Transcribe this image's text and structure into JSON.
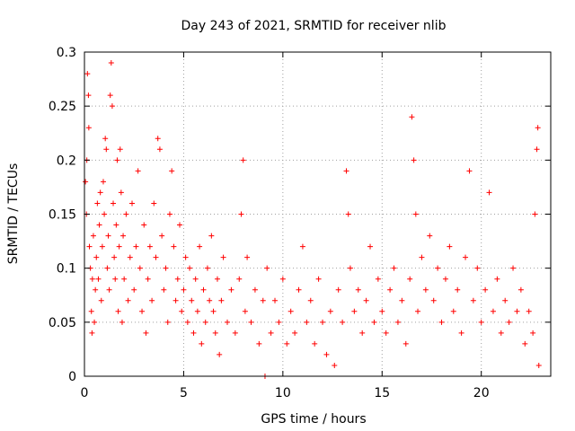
{
  "chart_data": {
    "type": "scatter",
    "title": "Day 243 of 2021, SRMTID for receiver nlib",
    "xlabel": "GPS time / hours",
    "ylabel": "SRMTID / TECUs",
    "xlim": [
      0,
      23.5
    ],
    "ylim": [
      0,
      0.3
    ],
    "x_ticks": [
      0,
      5,
      10,
      15,
      20
    ],
    "x_tick_labels": [
      "0",
      "5",
      "10",
      "15",
      "20"
    ],
    "y_ticks": [
      0,
      0.05,
      0.1,
      0.15,
      0.2,
      0.25,
      0.3
    ],
    "y_tick_labels": [
      "0",
      "0.05",
      "0.1",
      "0.15",
      "0.2",
      "0.25",
      "0.3"
    ],
    "grid": true,
    "marker": "plus",
    "color": "#ff0000",
    "series": [
      {
        "points": [
          [
            0.05,
            0.18
          ],
          [
            0.1,
            0.15
          ],
          [
            0.12,
            0.2
          ],
          [
            0.15,
            0.28
          ],
          [
            0.2,
            0.26
          ],
          [
            0.22,
            0.23
          ],
          [
            0.25,
            0.12
          ],
          [
            0.3,
            0.1
          ],
          [
            0.35,
            0.06
          ],
          [
            0.38,
            0.04
          ],
          [
            0.4,
            0.09
          ],
          [
            0.45,
            0.13
          ],
          [
            0.5,
            0.05
          ],
          [
            0.55,
            0.08
          ],
          [
            0.6,
            0.11
          ],
          [
            0.65,
            0.16
          ],
          [
            0.7,
            0.09
          ],
          [
            0.75,
            0.14
          ],
          [
            0.8,
            0.17
          ],
          [
            0.85,
            0.07
          ],
          [
            0.9,
            0.12
          ],
          [
            0.95,
            0.18
          ],
          [
            1.0,
            0.15
          ],
          [
            1.05,
            0.22
          ],
          [
            1.1,
            0.21
          ],
          [
            1.15,
            0.1
          ],
          [
            1.2,
            0.13
          ],
          [
            1.25,
            0.08
          ],
          [
            1.3,
            0.26
          ],
          [
            1.35,
            0.29
          ],
          [
            1.4,
            0.25
          ],
          [
            1.45,
            0.16
          ],
          [
            1.5,
            0.11
          ],
          [
            1.55,
            0.09
          ],
          [
            1.6,
            0.14
          ],
          [
            1.65,
            0.2
          ],
          [
            1.7,
            0.06
          ],
          [
            1.75,
            0.12
          ],
          [
            1.8,
            0.21
          ],
          [
            1.85,
            0.17
          ],
          [
            1.9,
            0.05
          ],
          [
            1.95,
            0.13
          ],
          [
            2.0,
            0.09
          ],
          [
            2.1,
            0.15
          ],
          [
            2.2,
            0.07
          ],
          [
            2.3,
            0.11
          ],
          [
            2.4,
            0.16
          ],
          [
            2.5,
            0.08
          ],
          [
            2.6,
            0.12
          ],
          [
            2.7,
            0.19
          ],
          [
            2.8,
            0.1
          ],
          [
            2.9,
            0.06
          ],
          [
            3.0,
            0.14
          ],
          [
            3.1,
            0.04
          ],
          [
            3.2,
            0.09
          ],
          [
            3.3,
            0.12
          ],
          [
            3.4,
            0.07
          ],
          [
            3.5,
            0.16
          ],
          [
            3.6,
            0.11
          ],
          [
            3.7,
            0.22
          ],
          [
            3.8,
            0.21
          ],
          [
            3.9,
            0.13
          ],
          [
            4.0,
            0.08
          ],
          [
            4.1,
            0.1
          ],
          [
            4.2,
            0.05
          ],
          [
            4.3,
            0.15
          ],
          [
            4.4,
            0.19
          ],
          [
            4.5,
            0.12
          ],
          [
            4.6,
            0.07
          ],
          [
            4.7,
            0.09
          ],
          [
            4.8,
            0.14
          ],
          [
            4.9,
            0.06
          ],
          [
            5.0,
            0.08
          ],
          [
            5.1,
            0.11
          ],
          [
            5.2,
            0.05
          ],
          [
            5.3,
            0.1
          ],
          [
            5.4,
            0.07
          ],
          [
            5.5,
            0.04
          ],
          [
            5.6,
            0.09
          ],
          [
            5.7,
            0.06
          ],
          [
            5.8,
            0.12
          ],
          [
            5.9,
            0.03
          ],
          [
            6.0,
            0.08
          ],
          [
            6.1,
            0.05
          ],
          [
            6.2,
            0.1
          ],
          [
            6.3,
            0.07
          ],
          [
            6.4,
            0.13
          ],
          [
            6.5,
            0.06
          ],
          [
            6.6,
            0.04
          ],
          [
            6.7,
            0.09
          ],
          [
            6.8,
            0.02
          ],
          [
            6.9,
            0.07
          ],
          [
            7.0,
            0.11
          ],
          [
            7.2,
            0.05
          ],
          [
            7.4,
            0.08
          ],
          [
            7.6,
            0.04
          ],
          [
            7.8,
            0.09
          ],
          [
            7.9,
            0.15
          ],
          [
            8.0,
            0.2
          ],
          [
            8.1,
            0.06
          ],
          [
            8.2,
            0.11
          ],
          [
            8.4,
            0.05
          ],
          [
            8.6,
            0.08
          ],
          [
            8.8,
            0.03
          ],
          [
            9.0,
            0.07
          ],
          [
            9.1,
            0.0
          ],
          [
            9.2,
            0.1
          ],
          [
            9.4,
            0.04
          ],
          [
            9.6,
            0.07
          ],
          [
            9.8,
            0.05
          ],
          [
            10.0,
            0.09
          ],
          [
            10.2,
            0.03
          ],
          [
            10.4,
            0.06
          ],
          [
            10.6,
            0.04
          ],
          [
            10.8,
            0.08
          ],
          [
            11.0,
            0.12
          ],
          [
            11.2,
            0.05
          ],
          [
            11.4,
            0.07
          ],
          [
            11.6,
            0.03
          ],
          [
            11.8,
            0.09
          ],
          [
            12.0,
            0.05
          ],
          [
            12.2,
            0.02
          ],
          [
            12.4,
            0.06
          ],
          [
            12.6,
            0.01
          ],
          [
            12.8,
            0.08
          ],
          [
            13.0,
            0.05
          ],
          [
            13.2,
            0.19
          ],
          [
            13.3,
            0.15
          ],
          [
            13.4,
            0.1
          ],
          [
            13.6,
            0.06
          ],
          [
            13.8,
            0.08
          ],
          [
            14.0,
            0.04
          ],
          [
            14.2,
            0.07
          ],
          [
            14.4,
            0.12
          ],
          [
            14.6,
            0.05
          ],
          [
            14.8,
            0.09
          ],
          [
            15.0,
            0.06
          ],
          [
            15.2,
            0.04
          ],
          [
            15.4,
            0.08
          ],
          [
            15.6,
            0.1
          ],
          [
            15.8,
            0.05
          ],
          [
            16.0,
            0.07
          ],
          [
            16.2,
            0.03
          ],
          [
            16.4,
            0.09
          ],
          [
            16.5,
            0.24
          ],
          [
            16.6,
            0.2
          ],
          [
            16.7,
            0.15
          ],
          [
            16.8,
            0.06
          ],
          [
            17.0,
            0.11
          ],
          [
            17.2,
            0.08
          ],
          [
            17.4,
            0.13
          ],
          [
            17.6,
            0.07
          ],
          [
            17.8,
            0.1
          ],
          [
            18.0,
            0.05
          ],
          [
            18.2,
            0.09
          ],
          [
            18.4,
            0.12
          ],
          [
            18.6,
            0.06
          ],
          [
            18.8,
            0.08
          ],
          [
            19.0,
            0.04
          ],
          [
            19.2,
            0.11
          ],
          [
            19.4,
            0.19
          ],
          [
            19.6,
            0.07
          ],
          [
            19.8,
            0.1
          ],
          [
            20.0,
            0.05
          ],
          [
            20.2,
            0.08
          ],
          [
            20.4,
            0.17
          ],
          [
            20.6,
            0.06
          ],
          [
            20.8,
            0.09
          ],
          [
            21.0,
            0.04
          ],
          [
            21.2,
            0.07
          ],
          [
            21.4,
            0.05
          ],
          [
            21.6,
            0.1
          ],
          [
            21.8,
            0.06
          ],
          [
            22.0,
            0.08
          ],
          [
            22.2,
            0.03
          ],
          [
            22.4,
            0.06
          ],
          [
            22.6,
            0.04
          ],
          [
            22.7,
            0.15
          ],
          [
            22.8,
            0.21
          ],
          [
            22.85,
            0.23
          ],
          [
            22.9,
            0.01
          ]
        ]
      }
    ]
  }
}
